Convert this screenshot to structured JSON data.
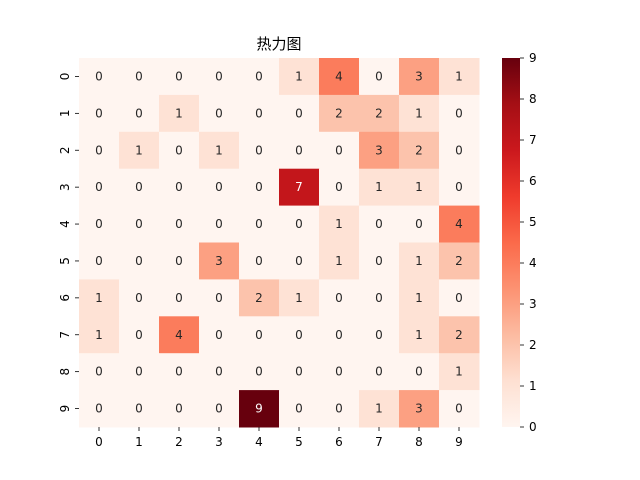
{
  "chart_data": {
    "type": "heatmap",
    "title": "热力图",
    "xlabel": "",
    "ylabel": "",
    "x_categories": [
      "0",
      "1",
      "2",
      "3",
      "4",
      "5",
      "6",
      "7",
      "8",
      "9"
    ],
    "y_categories": [
      "0",
      "1",
      "2",
      "3",
      "4",
      "5",
      "6",
      "7",
      "8",
      "9"
    ],
    "values": [
      [
        0,
        0,
        0,
        0,
        0,
        1,
        4,
        0,
        3,
        1
      ],
      [
        0,
        0,
        1,
        0,
        0,
        0,
        2,
        2,
        1,
        0
      ],
      [
        0,
        1,
        0,
        1,
        0,
        0,
        0,
        3,
        2,
        0
      ],
      [
        0,
        0,
        0,
        0,
        0,
        7,
        0,
        1,
        1,
        0
      ],
      [
        0,
        0,
        0,
        0,
        0,
        0,
        1,
        0,
        0,
        4
      ],
      [
        0,
        0,
        0,
        3,
        0,
        0,
        1,
        0,
        1,
        2
      ],
      [
        1,
        0,
        0,
        0,
        2,
        1,
        0,
        0,
        1,
        0
      ],
      [
        1,
        0,
        4,
        0,
        0,
        0,
        0,
        0,
        1,
        2
      ],
      [
        0,
        0,
        0,
        0,
        0,
        0,
        0,
        0,
        0,
        1
      ],
      [
        0,
        0,
        0,
        0,
        9,
        0,
        0,
        1,
        3,
        0
      ]
    ],
    "annotated": true,
    "colormap": "Reds",
    "color_range": [
      0,
      9
    ],
    "colorbar_ticks": [
      0,
      1,
      2,
      3,
      4,
      5,
      6,
      7,
      8,
      9
    ],
    "colorbar_position": "right",
    "grid": false
  }
}
